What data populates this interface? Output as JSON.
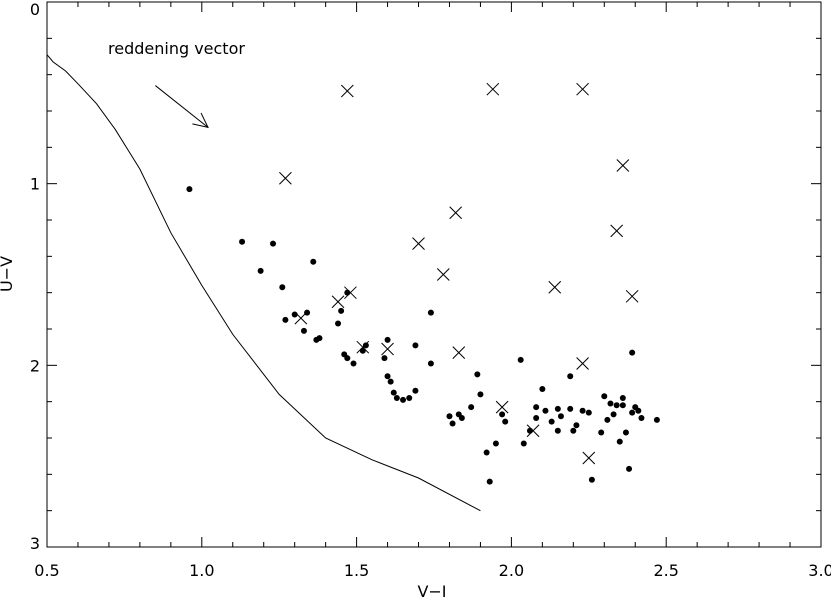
{
  "chart_data": {
    "type": "scatter",
    "title": "",
    "xlabel": "V−I",
    "ylabel": "U−V",
    "xlim": [
      0.5,
      3.0
    ],
    "ylim": [
      3.0,
      0.0
    ],
    "y_inverted": true,
    "grid": false,
    "xticks": [
      0.5,
      1.0,
      1.5,
      2.0,
      2.5,
      3.0
    ],
    "xtick_labels": [
      "0.5",
      "1.0",
      "1.5",
      "2.0",
      "2.5",
      "3.0"
    ],
    "yticks": [
      0,
      1,
      2,
      3
    ],
    "ytick_labels": [
      "0",
      "1",
      "2",
      "3"
    ],
    "annotation": "reddening vector",
    "reddening_vector": {
      "x0": 0.85,
      "y0": 0.46,
      "x1": 1.02,
      "y1": 0.69
    },
    "curve": {
      "x": [
        0.5,
        0.52,
        0.56,
        0.6,
        0.66,
        0.72,
        0.8,
        0.9,
        1.0,
        1.1,
        1.25,
        1.4,
        1.55,
        1.7,
        1.9
      ],
      "y": [
        0.29,
        0.33,
        0.38,
        0.45,
        0.56,
        0.7,
        0.92,
        1.27,
        1.56,
        1.83,
        2.16,
        2.4,
        2.52,
        2.62,
        2.8
      ]
    },
    "series": [
      {
        "marker": "dot",
        "x": [
          0.96,
          1.13,
          1.19,
          1.23,
          1.26,
          1.27,
          1.3,
          1.33,
          1.34,
          1.36,
          1.37,
          1.38,
          1.44,
          1.45,
          1.46,
          1.47,
          1.47,
          1.49,
          1.52,
          1.53,
          1.59,
          1.6,
          1.6,
          1.61,
          1.62,
          1.63,
          1.65,
          1.67,
          1.69,
          1.69,
          1.74,
          1.74,
          1.8,
          1.81,
          1.83,
          1.84,
          1.87,
          1.89,
          1.9,
          1.92,
          1.93,
          1.95,
          1.97,
          1.98,
          2.03,
          2.04,
          2.06,
          2.08,
          2.08,
          2.1,
          2.11,
          2.13,
          2.15,
          2.15,
          2.16,
          2.19,
          2.19,
          2.2,
          2.21,
          2.23,
          2.25,
          2.26,
          2.29,
          2.3,
          2.31,
          2.32,
          2.33,
          2.34,
          2.35,
          2.36,
          2.36,
          2.37,
          2.38,
          2.39,
          2.39,
          2.4,
          2.41,
          2.42,
          2.47
        ],
        "y": [
          1.03,
          1.32,
          1.48,
          1.33,
          1.57,
          1.75,
          1.72,
          1.81,
          1.71,
          1.43,
          1.86,
          1.85,
          1.77,
          1.7,
          1.94,
          1.96,
          1.6,
          1.99,
          1.92,
          1.89,
          1.96,
          1.86,
          2.06,
          2.09,
          2.15,
          2.18,
          2.19,
          2.18,
          1.89,
          2.14,
          1.71,
          1.99,
          2.28,
          2.32,
          2.27,
          2.29,
          2.23,
          2.05,
          2.16,
          2.48,
          2.64,
          2.43,
          2.27,
          2.31,
          1.97,
          2.43,
          2.36,
          2.23,
          2.29,
          2.13,
          2.25,
          2.31,
          2.24,
          2.36,
          2.28,
          2.06,
          2.24,
          2.36,
          2.33,
          2.25,
          2.26,
          2.63,
          2.37,
          2.17,
          2.3,
          2.21,
          2.27,
          2.22,
          2.42,
          2.22,
          2.18,
          2.37,
          2.57,
          1.93,
          2.26,
          2.23,
          2.25,
          2.29,
          2.3
        ]
      },
      {
        "marker": "cross",
        "x": [
          1.47,
          1.94,
          2.23,
          1.27,
          2.36,
          1.82,
          2.34,
          1.7,
          1.78,
          2.14,
          2.39,
          1.48,
          1.44,
          1.32,
          1.52,
          1.6,
          1.83,
          2.23,
          1.97,
          2.07,
          2.25
        ],
        "y": [
          0.49,
          0.48,
          0.48,
          0.97,
          0.9,
          1.16,
          1.26,
          1.33,
          1.5,
          1.57,
          1.62,
          1.6,
          1.65,
          1.74,
          1.9,
          1.91,
          1.93,
          1.99,
          2.23,
          2.36,
          2.51
        ]
      }
    ]
  }
}
